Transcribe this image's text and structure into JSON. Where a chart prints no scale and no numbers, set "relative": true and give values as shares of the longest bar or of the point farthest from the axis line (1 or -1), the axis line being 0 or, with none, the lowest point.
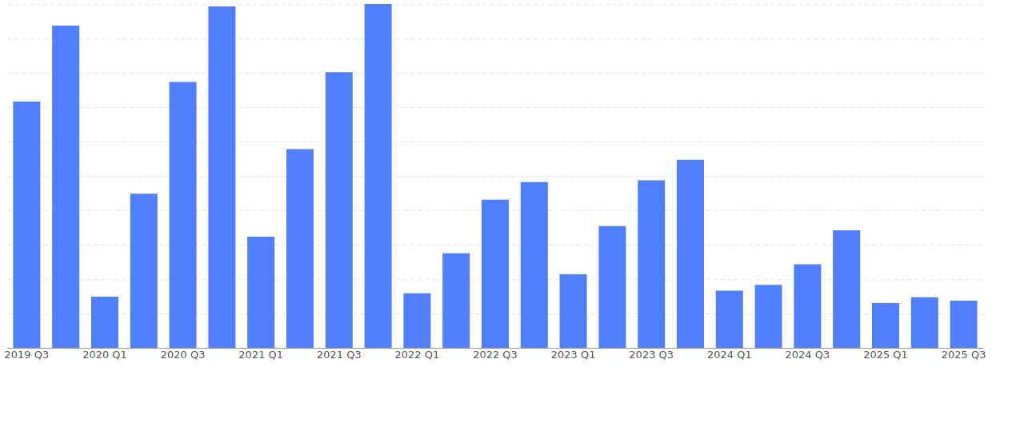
{
  "chart_data": {
    "type": "bar",
    "relative": true,
    "grid": "y",
    "color": "#4f7ffc",
    "categories": [
      "2019 Q3",
      null,
      "2020 Q1",
      null,
      "2020 Q3",
      null,
      "2021 Q1",
      null,
      "2021 Q3",
      null,
      "2022 Q1",
      null,
      "2022 Q3",
      null,
      "2023 Q1",
      null,
      "2023 Q3",
      null,
      "2024 Q1",
      null,
      "2024 Q3",
      null,
      "2025 Q1",
      null,
      "2025 Q3"
    ],
    "values": [
      0.716,
      0.937,
      0.149,
      0.448,
      0.773,
      0.993,
      0.323,
      0.578,
      0.802,
      1,
      0.159,
      0.275,
      0.431,
      0.482,
      0.214,
      0.354,
      0.487,
      0.547,
      0.166,
      0.183,
      0.243,
      0.342,
      0.13,
      0.147,
      0.137
    ]
  }
}
